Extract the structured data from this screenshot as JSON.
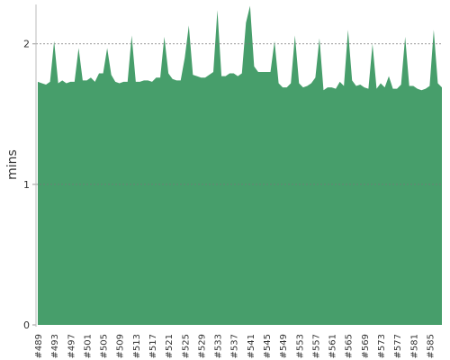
{
  "chart_data": {
    "type": "area",
    "ylabel": "mins",
    "color": "#479e6b",
    "ylim": [
      0,
      2.28
    ],
    "yticks": [
      0,
      1,
      2
    ],
    "grid": true,
    "categories": [
      "#489",
      null,
      null,
      null,
      "#493",
      null,
      null,
      null,
      "#497",
      null,
      null,
      null,
      "#501",
      null,
      null,
      null,
      "#505",
      null,
      null,
      null,
      "#509",
      null,
      null,
      null,
      "#513",
      null,
      null,
      null,
      "#517",
      null,
      null,
      null,
      "#521",
      null,
      null,
      null,
      "#525",
      null,
      null,
      null,
      "#529",
      null,
      null,
      null,
      "#533",
      null,
      null,
      null,
      "#537",
      null,
      null,
      null,
      "#541",
      null,
      null,
      null,
      "#545",
      null,
      null,
      null,
      "#549",
      null,
      null,
      null,
      "#553",
      null,
      null,
      null,
      "#557",
      null,
      null,
      null,
      "#561",
      null,
      null,
      null,
      "#565",
      null,
      null,
      null,
      "#569",
      null,
      null,
      null,
      "#573",
      null,
      null,
      null,
      "#577",
      null,
      null,
      null,
      "#581",
      null,
      null,
      null,
      "#585",
      null,
      null,
      null
    ],
    "values": [
      1.73,
      1.72,
      1.71,
      1.73,
      2.02,
      1.72,
      1.74,
      1.72,
      1.73,
      1.73,
      1.97,
      1.74,
      1.74,
      1.76,
      1.73,
      1.79,
      1.79,
      1.97,
      1.78,
      1.73,
      1.72,
      1.73,
      1.73,
      2.06,
      1.73,
      1.73,
      1.74,
      1.74,
      1.73,
      1.76,
      1.76,
      2.05,
      1.79,
      1.75,
      1.74,
      1.74,
      1.9,
      2.13,
      1.78,
      1.77,
      1.76,
      1.76,
      1.78,
      1.8,
      2.24,
      1.77,
      1.77,
      1.79,
      1.79,
      1.77,
      1.79,
      2.15,
      2.27,
      1.84,
      1.8,
      1.8,
      1.8,
      1.8,
      2.02,
      1.72,
      1.69,
      1.69,
      1.72,
      2.06,
      1.72,
      1.69,
      1.7,
      1.72,
      1.76,
      2.04,
      1.67,
      1.69,
      1.69,
      1.68,
      1.73,
      1.7,
      2.1,
      1.74,
      1.7,
      1.71,
      1.69,
      1.68,
      2.0,
      1.68,
      1.72,
      1.69,
      1.77,
      1.68,
      1.68,
      1.71,
      2.05,
      1.7,
      1.7,
      1.68,
      1.67,
      1.68,
      1.7,
      2.1,
      1.72,
      1.69
    ]
  }
}
